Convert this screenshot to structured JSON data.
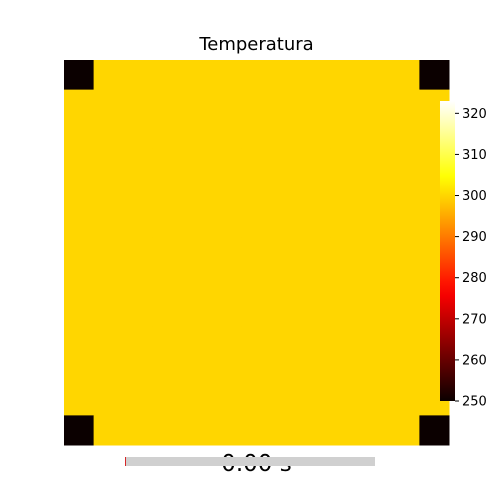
{
  "chart_data": {
    "type": "heatmap",
    "title": "Temperatura",
    "grid": [
      [
        250,
        300,
        300,
        300,
        300,
        300,
        300,
        300,
        300,
        300,
        300,
        300,
        250
      ],
      [
        300,
        300,
        300,
        300,
        300,
        300,
        300,
        300,
        300,
        300,
        300,
        300,
        300
      ],
      [
        300,
        300,
        300,
        300,
        300,
        300,
        300,
        300,
        300,
        300,
        300,
        300,
        300
      ],
      [
        300,
        300,
        300,
        300,
        300,
        300,
        300,
        300,
        300,
        300,
        300,
        300,
        300
      ],
      [
        300,
        300,
        300,
        300,
        300,
        300,
        300,
        300,
        300,
        300,
        300,
        300,
        300
      ],
      [
        300,
        300,
        300,
        300,
        300,
        300,
        300,
        300,
        300,
        300,
        300,
        300,
        300
      ],
      [
        300,
        300,
        300,
        300,
        300,
        300,
        300,
        300,
        300,
        300,
        300,
        300,
        300
      ],
      [
        300,
        300,
        300,
        300,
        300,
        300,
        300,
        300,
        300,
        300,
        300,
        300,
        300
      ],
      [
        300,
        300,
        300,
        300,
        300,
        300,
        300,
        300,
        300,
        300,
        300,
        300,
        300
      ],
      [
        300,
        300,
        300,
        300,
        300,
        300,
        300,
        300,
        300,
        300,
        300,
        300,
        300
      ],
      [
        300,
        300,
        300,
        300,
        300,
        300,
        300,
        300,
        300,
        300,
        300,
        300,
        300
      ],
      [
        300,
        300,
        300,
        300,
        300,
        300,
        300,
        300,
        300,
        300,
        300,
        300,
        300
      ],
      [
        250,
        300,
        300,
        300,
        300,
        300,
        300,
        300,
        300,
        300,
        300,
        300,
        250
      ]
    ],
    "colorbar": {
      "colormap": "hot",
      "range": [
        250,
        323
      ],
      "ticks": [
        250,
        260,
        270,
        280,
        290,
        300,
        310,
        320
      ]
    },
    "axes_visible": false
  },
  "time_label": "0.00 s",
  "progress": {
    "fraction": 0.0,
    "track_color": "#d0d0d0",
    "marker_color": "#d62728"
  }
}
